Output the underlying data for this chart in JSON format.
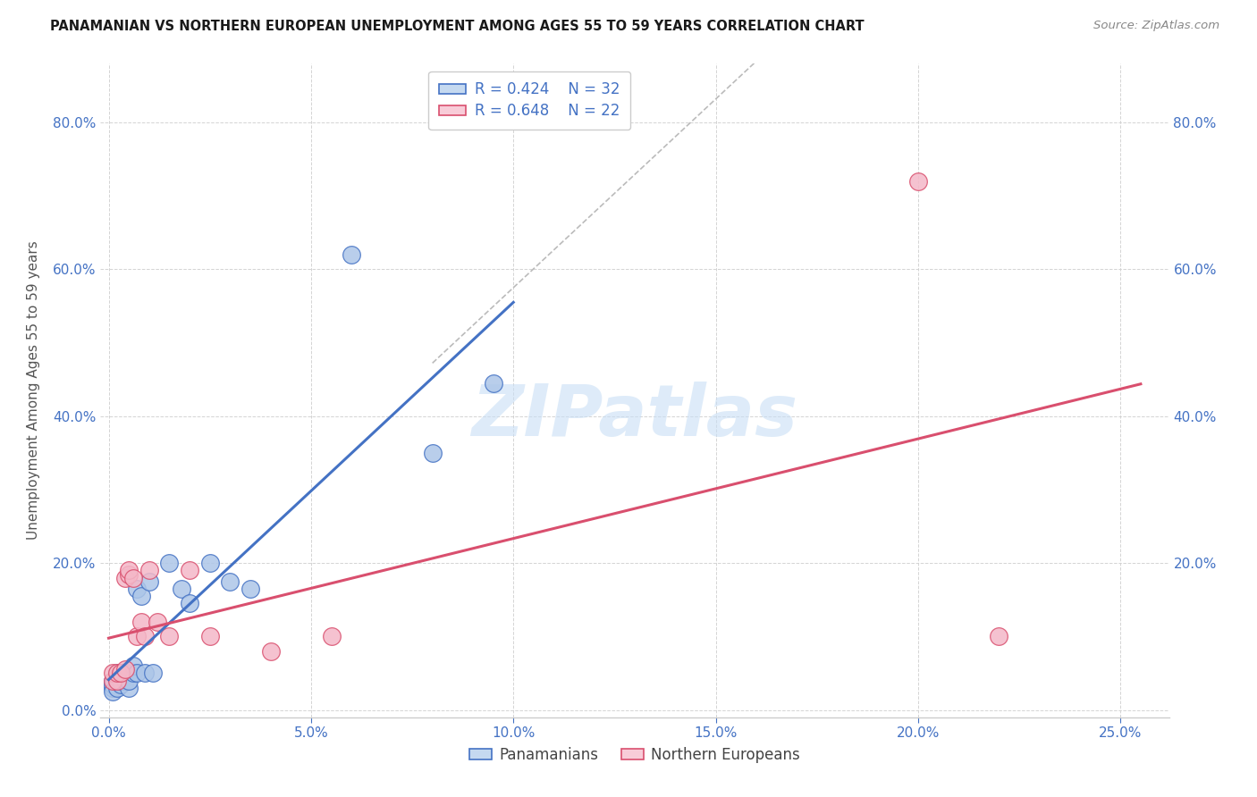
{
  "title": "PANAMANIAN VS NORTHERN EUROPEAN UNEMPLOYMENT AMONG AGES 55 TO 59 YEARS CORRELATION CHART",
  "source": "Source: ZipAtlas.com",
  "ylabel_label": "Unemployment Among Ages 55 to 59 years",
  "r_pan": 0.424,
  "n_pan": 32,
  "r_nor": 0.648,
  "n_nor": 22,
  "pan_scatter_color": "#adc6e8",
  "nor_scatter_color": "#f4b8c8",
  "pan_line_color": "#4472c4",
  "nor_line_color": "#d94f6e",
  "pan_edge_color": "#4472c4",
  "nor_edge_color": "#d94f6e",
  "legend_pan_color": "#c5d9f0",
  "legend_nor_color": "#f8ccd8",
  "text_blue": "#4472c4",
  "watermark_color": "#c8dff5",
  "title_color": "#1a1a1a",
  "source_color": "#888888",
  "grid_color": "#d0d0d0",
  "axis_color": "#cccccc",
  "tick_color": "#4472c4",
  "background_color": "#ffffff",
  "watermark": "ZIPatlas",
  "xlim": [
    -0.002,
    0.262
  ],
  "ylim": [
    -0.01,
    0.88
  ],
  "xticks": [
    0.0,
    0.05,
    0.1,
    0.15,
    0.2,
    0.25
  ],
  "yticks_left": [
    0.0,
    0.2,
    0.4,
    0.6,
    0.8
  ],
  "yticks_right": [
    0.2,
    0.4,
    0.6,
    0.8
  ],
  "pan_x": [
    0.001,
    0.001,
    0.001,
    0.001,
    0.002,
    0.002,
    0.002,
    0.002,
    0.003,
    0.003,
    0.003,
    0.004,
    0.004,
    0.005,
    0.005,
    0.006,
    0.006,
    0.007,
    0.007,
    0.008,
    0.009,
    0.01,
    0.011,
    0.015,
    0.018,
    0.02,
    0.025,
    0.03,
    0.035,
    0.06,
    0.08,
    0.095
  ],
  "pan_y": [
    0.03,
    0.04,
    0.035,
    0.025,
    0.04,
    0.05,
    0.04,
    0.03,
    0.035,
    0.05,
    0.04,
    0.04,
    0.05,
    0.03,
    0.04,
    0.05,
    0.06,
    0.165,
    0.05,
    0.155,
    0.05,
    0.175,
    0.05,
    0.2,
    0.165,
    0.145,
    0.2,
    0.175,
    0.165,
    0.62,
    0.35,
    0.445
  ],
  "nor_x": [
    0.001,
    0.001,
    0.002,
    0.002,
    0.003,
    0.004,
    0.004,
    0.005,
    0.005,
    0.006,
    0.007,
    0.008,
    0.009,
    0.01,
    0.012,
    0.015,
    0.02,
    0.025,
    0.04,
    0.055,
    0.2,
    0.22
  ],
  "nor_y": [
    0.04,
    0.05,
    0.04,
    0.05,
    0.05,
    0.055,
    0.18,
    0.185,
    0.19,
    0.18,
    0.1,
    0.12,
    0.1,
    0.19,
    0.12,
    0.1,
    0.19,
    0.1,
    0.08,
    0.1,
    0.72,
    0.1
  ],
  "figsize": [
    14.06,
    8.92
  ],
  "dpi": 100
}
